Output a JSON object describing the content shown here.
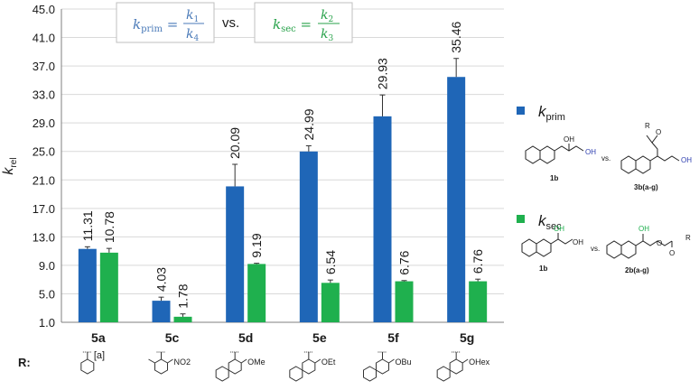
{
  "chart_data": {
    "type": "bar",
    "ylabel_main": "k",
    "ylabel_sub": "rel",
    "ylim": [
      1.0,
      45.0
    ],
    "yticks": [
      "1.0",
      "5.0",
      "9.0",
      "13.0",
      "17.0",
      "21.0",
      "25.0",
      "29.0",
      "33.0",
      "37.0",
      "41.0",
      "45.0"
    ],
    "grid": true,
    "categories": [
      "5a",
      "5c",
      "5d",
      "5e",
      "5f",
      "5g"
    ],
    "series": [
      {
        "name": "kprim",
        "legend_main": "k",
        "legend_sub": "prim",
        "color": "#1f66b7",
        "values": [
          11.31,
          4.03,
          20.09,
          24.99,
          29.93,
          35.46
        ],
        "labels": [
          "11.31",
          "4.03",
          "20.09",
          "24.99",
          "29.93",
          "35.46"
        ],
        "errors": [
          0.3,
          0.5,
          3.1,
          0.8,
          3.0,
          2.6
        ]
      },
      {
        "name": "ksec",
        "legend_main": "k",
        "legend_sub": "sec",
        "color": "#1fb04e",
        "values": [
          10.78,
          1.78,
          9.19,
          6.54,
          6.76,
          6.76
        ],
        "labels": [
          "10.78",
          "1.78",
          "9.19",
          "6.54",
          "6.76",
          "6.76"
        ],
        "errors": [
          0.6,
          0.4,
          0.1,
          0.4,
          0.1,
          0.3
        ]
      }
    ],
    "formula_prim": {
      "lhs_main": "k",
      "lhs_sub": "prim",
      "num_main": "k",
      "num_sub": "1",
      "den_main": "k",
      "den_sub": "4"
    },
    "formula_vs": "vs.",
    "formula_sec": {
      "lhs_main": "k",
      "lhs_sub": "sec",
      "num_main": "k",
      "num_sub": "2",
      "den_main": "k",
      "den_sub": "3"
    },
    "r_label": "R:",
    "r_footnote": "[a]",
    "r_substituents": [
      "",
      "NO2",
      "OMe",
      "OEt",
      "OBu",
      "OHex"
    ],
    "legend_prim_structures": {
      "left": "1b",
      "vs": "vs.",
      "right": "3b(a-g)",
      "oh": "OH",
      "r": "R",
      "o": "O"
    },
    "legend_sec_structures": {
      "left": "1b",
      "vs": "vs.",
      "right": "2b(a-g)",
      "oh": "OH",
      "r": "R",
      "o": "O"
    },
    "colors": {
      "prim": "#1f66b7",
      "sec": "#1fb04e",
      "grid": "#d9d9d9",
      "axis": "#7f7f7f",
      "formula_prim": "#4a7ab8",
      "formula_sec": "#27a24a"
    }
  }
}
